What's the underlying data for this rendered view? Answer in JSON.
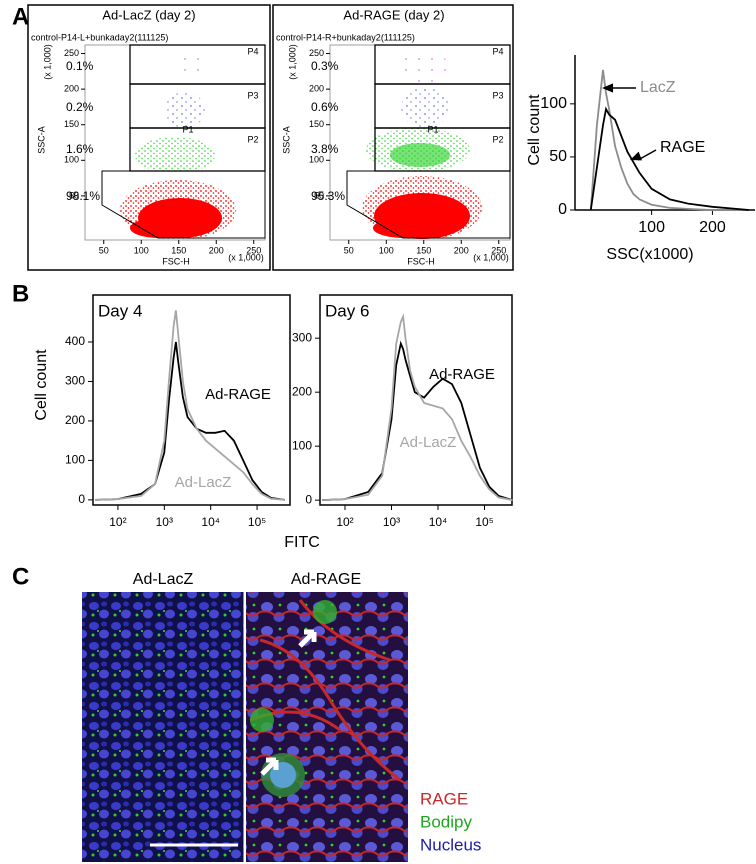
{
  "panel_labels": [
    "A",
    "B",
    "C"
  ],
  "flow_plots": [
    {
      "title": "Ad-LacZ (day 2)",
      "header": "control-P14-L+bunkaday2(111125)",
      "y_axis_label": "SSC-A",
      "x_axis_label": "FSC-H",
      "y_scale_label": "(x 1,000)",
      "x_scale_label": "(x 1,000)",
      "yticks": [
        50,
        100,
        150,
        200,
        250
      ],
      "xticks": [
        50,
        100,
        150,
        200,
        250
      ],
      "gates": [
        "P4",
        "P3",
        "P1",
        "P2"
      ],
      "percentages": [
        "0.1%",
        "0.2%",
        "1.6%",
        "98.1%"
      ]
    },
    {
      "title": "Ad-RAGE (day 2)",
      "header": "control-P14-R+bunkaday2(111125)",
      "y_axis_label": "SSC-A",
      "x_axis_label": "FSC-H",
      "y_scale_label": "(x 1,000)",
      "x_scale_label": "(x 1,000)",
      "yticks": [
        50,
        100,
        150,
        200,
        250
      ],
      "xticks": [
        50,
        100,
        150,
        200,
        250
      ],
      "gates": [
        "P4",
        "P3",
        "P1",
        "P2"
      ],
      "percentages": [
        "0.3%",
        "0.6%",
        "3.8%",
        "95.3%"
      ]
    }
  ],
  "chart_data": [
    {
      "type": "line",
      "x_label": "SSC(x1000)",
      "y_label": "Cell count",
      "x": [
        0,
        10,
        20,
        25,
        30,
        40,
        50,
        60,
        70,
        80,
        100,
        130,
        160,
        200,
        260
      ],
      "series": [
        {
          "name": "LacZ",
          "color": "#8c8c8c",
          "values": [
            0,
            80,
            132,
            110,
            95,
            60,
            40,
            25,
            15,
            10,
            5,
            2,
            1,
            0,
            0
          ]
        },
        {
          "name": "RAGE",
          "color": "#000000",
          "values": [
            0,
            40,
            80,
            95,
            90,
            85,
            70,
            55,
            45,
            35,
            20,
            10,
            6,
            3,
            0
          ]
        }
      ],
      "xlim": [
        -26,
        270
      ],
      "ylim": [
        0,
        146
      ],
      "xticks": [
        100,
        200
      ],
      "yticks": [
        0,
        50,
        100
      ]
    },
    {
      "type": "line",
      "title": "Day 4",
      "y_label": "Cell count",
      "log_x": true,
      "x": [
        32,
        100,
        316,
        631,
        1000,
        1259,
        1585,
        1778,
        1995,
        2512,
        3162,
        5012,
        7943,
        12589,
        19953,
        31623,
        50119,
        79433,
        125893,
        199526,
        398107
      ],
      "series": [
        {
          "name": "Ad-RAGE",
          "color": "#000000",
          "values": [
            0,
            2,
            15,
            40,
            120,
            250,
            360,
            400,
            350,
            260,
            210,
            180,
            170,
            170,
            175,
            150,
            100,
            50,
            20,
            5,
            0
          ]
        },
        {
          "name": "Ad-LacZ",
          "color": "#a6a6a6",
          "values": [
            0,
            2,
            10,
            40,
            150,
            300,
            440,
            480,
            420,
            300,
            230,
            180,
            150,
            130,
            110,
            90,
            70,
            40,
            15,
            3,
            0
          ]
        }
      ],
      "xlim": [
        29,
        513000
      ],
      "ylim": [
        -13,
        519
      ],
      "xticks": [
        {
          "value": 100,
          "label": "10²"
        },
        {
          "value": 1000,
          "label": "10³"
        },
        {
          "value": 10000,
          "label": "10⁴"
        },
        {
          "value": 100000,
          "label": "10⁵"
        }
      ],
      "yticks": [
        0,
        100,
        200,
        300,
        400
      ]
    },
    {
      "type": "line",
      "title": "Day 6",
      "x_label": "FITC",
      "log_x": true,
      "x": [
        32,
        100,
        316,
        631,
        1000,
        1259,
        1585,
        1778,
        1995,
        2512,
        3162,
        5012,
        7943,
        12589,
        19953,
        31623,
        50119,
        79433,
        125893,
        199526,
        398107
      ],
      "series": [
        {
          "name": "Ad-RAGE",
          "color": "#000000",
          "values": [
            0,
            2,
            15,
            50,
            150,
            250,
            290,
            280,
            260,
            230,
            200,
            190,
            210,
            225,
            215,
            180,
            120,
            60,
            25,
            8,
            0
          ]
        },
        {
          "name": "Ad-LacZ",
          "color": "#a6a6a6",
          "values": [
            0,
            2,
            10,
            45,
            170,
            290,
            330,
            340,
            300,
            240,
            210,
            180,
            175,
            170,
            150,
            110,
            80,
            45,
            20,
            5,
            0
          ]
        }
      ],
      "xlim": [
        29,
        390000
      ],
      "ylim": [
        -9,
        380
      ],
      "xticks": [
        {
          "value": 100,
          "label": "10²"
        },
        {
          "value": 1000,
          "label": "10³"
        },
        {
          "value": 10000,
          "label": "10⁴"
        },
        {
          "value": 100000,
          "label": "10⁵"
        }
      ],
      "yticks": [
        0,
        100,
        200,
        300
      ]
    }
  ],
  "microscopy": {
    "titles": [
      "Ad-LacZ",
      "Ad-RAGE"
    ],
    "legend": [
      {
        "name": "RAGE",
        "color": "#c8282a"
      },
      {
        "name": "Bodipy",
        "color": "#1fa51f"
      },
      {
        "name": "Nucleus",
        "color": "#1c1caa"
      }
    ]
  }
}
